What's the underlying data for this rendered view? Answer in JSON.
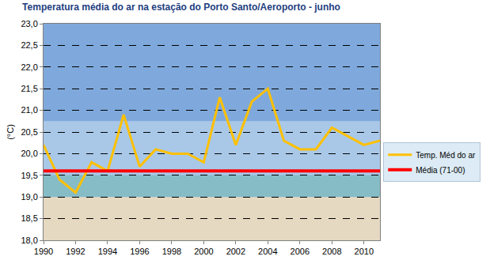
{
  "chart_data": {
    "type": "line",
    "title": "Temperatura média do ar na estação do Porto Santo/Aeroporto - junho",
    "y_label": "(°C)",
    "x": [
      1990,
      1991,
      1992,
      1993,
      1994,
      1995,
      1996,
      1997,
      1998,
      1999,
      2000,
      2001,
      2002,
      2003,
      2004,
      2005,
      2006,
      2007,
      2008,
      2009,
      2010,
      2011
    ],
    "series": [
      {
        "name": "Temp. Méd do ar",
        "color": "#ffc000",
        "values": [
          20.2,
          19.4,
          19.1,
          19.8,
          19.6,
          20.9,
          19.7,
          20.1,
          20.0,
          20.0,
          19.8,
          21.3,
          20.2,
          21.2,
          21.5,
          20.3,
          20.1,
          20.1,
          20.6,
          20.4,
          20.2,
          20.3
        ]
      },
      {
        "name": "Média (71-00)",
        "color": "#ff0000",
        "values": [
          19.6,
          19.6,
          19.6,
          19.6,
          19.6,
          19.6,
          19.6,
          19.6,
          19.6,
          19.6,
          19.6,
          19.6,
          19.6,
          19.6,
          19.6,
          19.6,
          19.6,
          19.6,
          19.6,
          19.6,
          19.6,
          19.6
        ]
      }
    ],
    "xlim": [
      1990,
      2011
    ],
    "xticks": [
      1990,
      1992,
      1994,
      1996,
      1998,
      2000,
      2002,
      2004,
      2006,
      2008,
      2010
    ],
    "ylim": [
      18,
      23
    ],
    "yticks": [
      {
        "value": 18,
        "label": "18,0"
      },
      {
        "value": 18.5,
        "label": "18,5"
      },
      {
        "value": 19,
        "label": "19,0"
      },
      {
        "value": 19.5,
        "label": "19,5"
      },
      {
        "value": 20,
        "label": "20,0"
      },
      {
        "value": 20.5,
        "label": "20,5"
      },
      {
        "value": 21,
        "label": "21,0"
      },
      {
        "value": 21.5,
        "label": "21,5"
      },
      {
        "value": 22,
        "label": "22,0"
      },
      {
        "value": 22.5,
        "label": "22,5"
      },
      {
        "value": 23,
        "label": "23,0"
      }
    ],
    "grid": true,
    "legend": "right"
  }
}
